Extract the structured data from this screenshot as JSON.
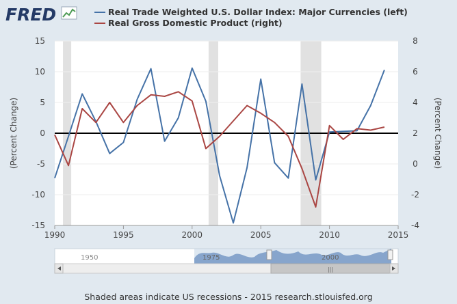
{
  "logo": {
    "text": "FRED"
  },
  "legend": [
    {
      "label": "Real Trade Weighted U.S. Dollar Index: Major Currencies (left)",
      "color": "#4572a7"
    },
    {
      "label": "Real Gross Domestic Product (right)",
      "color": "#aa4643"
    }
  ],
  "navigator": {
    "labels": [
      "1950",
      "1975",
      "2000"
    ],
    "scroll_grip": "|||"
  },
  "footer": {
    "text": "Shaded areas indicate US recessions - 2015 research.stlouisfed.org"
  },
  "chart_data": {
    "type": "line",
    "xlim": [
      1990,
      2015
    ],
    "x_ticks": [
      "1990",
      "1995",
      "2000",
      "2005",
      "2010",
      "2015"
    ],
    "ylabel_left": "(Percent Change)",
    "ylabel_right": "(Percent Change)",
    "ylim_left": [
      -15,
      15
    ],
    "ylim_right": [
      -4,
      8
    ],
    "y_ticks_left": [
      "15",
      "10",
      "5",
      "0",
      "-5",
      "-10",
      "-15"
    ],
    "y_ticks_right": [
      "8",
      "6",
      "4",
      "2",
      "0",
      "-2",
      "-4"
    ],
    "zero_line": true,
    "recessions": [
      [
        1990.6,
        1991.2
      ],
      [
        2001.2,
        2001.9
      ],
      [
        2007.9,
        2009.4
      ]
    ],
    "series": [
      {
        "name": "Real Trade Weighted U.S. Dollar Index: Major Currencies (left)",
        "axis": "left",
        "color": "#4572a7",
        "x": [
          1990,
          1991,
          1992,
          1993,
          1994,
          1995,
          1996,
          1997,
          1998,
          1999,
          2000,
          2001,
          2002,
          2003,
          2004,
          2005,
          2006,
          2007,
          2008,
          2009,
          2010,
          2011,
          2012,
          2013,
          2014
        ],
        "values": [
          -7.3,
          -0.5,
          6.4,
          1.9,
          -3.3,
          -1.5,
          5.5,
          10.5,
          -1.3,
          2.5,
          10.6,
          5.2,
          -6.9,
          -14.6,
          -5.6,
          8.8,
          -4.8,
          -7.3,
          8.0,
          -7.6,
          0.2,
          0.3,
          0.4,
          4.5,
          10.3
        ]
      },
      {
        "name": "Real Gross Domestic Product (right)",
        "axis": "right",
        "color": "#aa4643",
        "x": [
          1990,
          1991,
          1992,
          1993,
          1994,
          1995,
          1996,
          1997,
          1998,
          1999,
          2000,
          2001,
          2002,
          2003,
          2004,
          2005,
          2006,
          2007,
          2008,
          2009,
          2010,
          2011,
          2012,
          2013,
          2014
        ],
        "values": [
          1.9,
          -0.1,
          3.6,
          2.7,
          4.0,
          2.7,
          3.8,
          4.5,
          4.4,
          4.7,
          4.1,
          1.0,
          1.8,
          2.8,
          3.8,
          3.3,
          2.7,
          1.8,
          -0.3,
          -2.8,
          2.5,
          1.6,
          2.3,
          2.2,
          2.4
        ]
      }
    ]
  }
}
